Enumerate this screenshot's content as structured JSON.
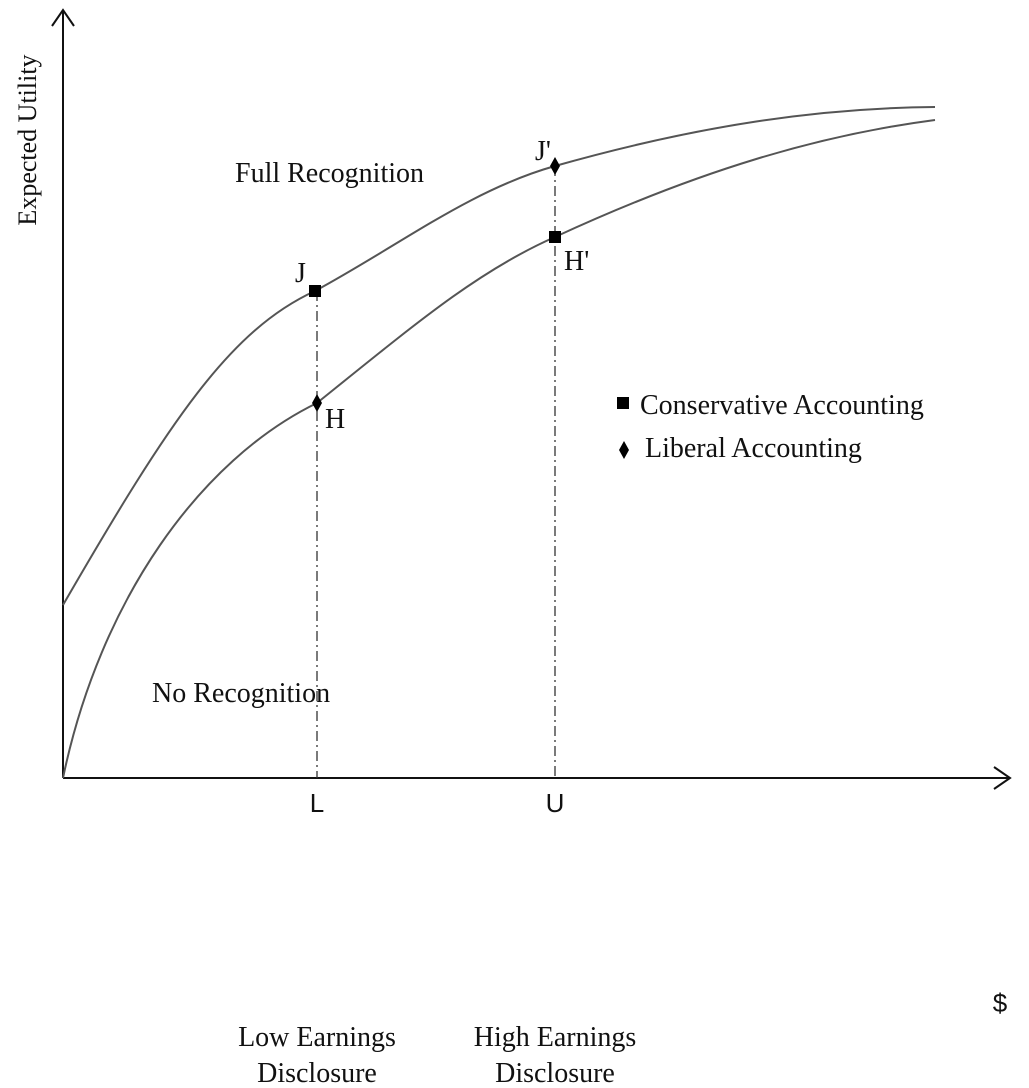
{
  "y_axis_label": "Expected Utility",
  "x_axis_label": "$",
  "curves": [
    {
      "label": "Full Recognition"
    },
    {
      "label": "No Recognition"
    }
  ],
  "points": [
    {
      "label": "J"
    },
    {
      "label": "H"
    },
    {
      "label": "J'"
    },
    {
      "label": "H'"
    }
  ],
  "x_markers": [
    {
      "label": "L",
      "caption": [
        "Low Earnings",
        "Disclosure"
      ]
    },
    {
      "label": "U",
      "caption": [
        "High Earnings",
        "Disclosure"
      ]
    }
  ],
  "legend": [
    "Conservative Accounting",
    "Liberal Accounting"
  ]
}
